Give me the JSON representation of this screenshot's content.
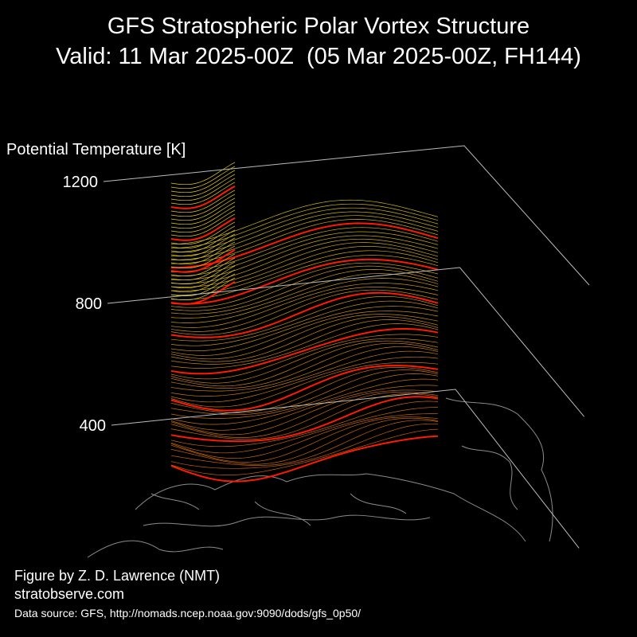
{
  "chart_data": {
    "type": "surface3d",
    "title": "GFS Stratospheric Polar Vortex Structure",
    "subtitle": "Valid: 11 Mar 2025-00Z  (05 Mar 2025-00Z, FH144)",
    "zlabel": "Potential Temperature [K]",
    "zlim": [
      300,
      1200
    ],
    "zticks": [
      400,
      800,
      1200
    ],
    "credit": "Figure by Z. D. Lawrence (NMT)",
    "website": "stratobserve.com",
    "source": "Data source: GFS, http://nomads.ncep.noaa.gov:9090/dods/gfs_0p50/"
  }
}
